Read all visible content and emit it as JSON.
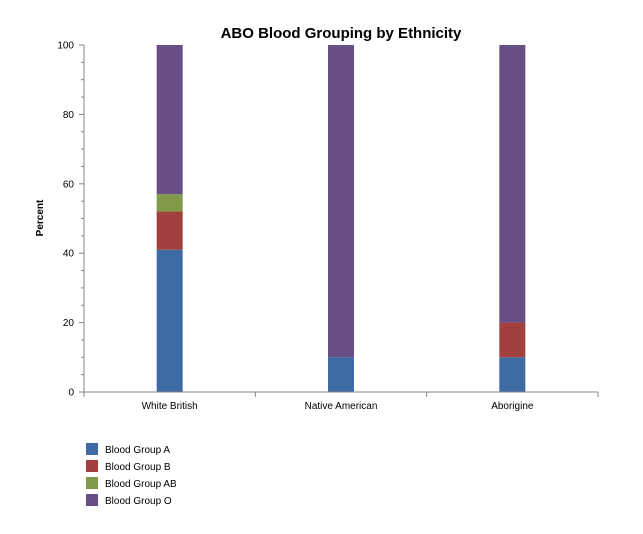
{
  "chart_data": {
    "type": "bar",
    "stacked": true,
    "title": "ABO Blood Grouping by Ethnicity",
    "xlabel": "",
    "ylabel": "Percent",
    "ylim": [
      0,
      100
    ],
    "yticks": [
      0,
      20,
      40,
      60,
      80,
      100
    ],
    "grid": false,
    "legend_position": "bottom-left",
    "categories": [
      "White British",
      "Native American",
      "Aborigine"
    ],
    "series": [
      {
        "name": "Blood Group A",
        "color": "#3E6BA3",
        "values": [
          41,
          10,
          10
        ]
      },
      {
        "name": "Blood Group B",
        "color": "#A2403D",
        "values": [
          11,
          0,
          10
        ]
      },
      {
        "name": "Blood Group AB",
        "color": "#7F9A48",
        "values": [
          5,
          0,
          0
        ]
      },
      {
        "name": "Blood Group O",
        "color": "#674F86",
        "values": [
          43,
          90,
          80
        ]
      }
    ]
  }
}
